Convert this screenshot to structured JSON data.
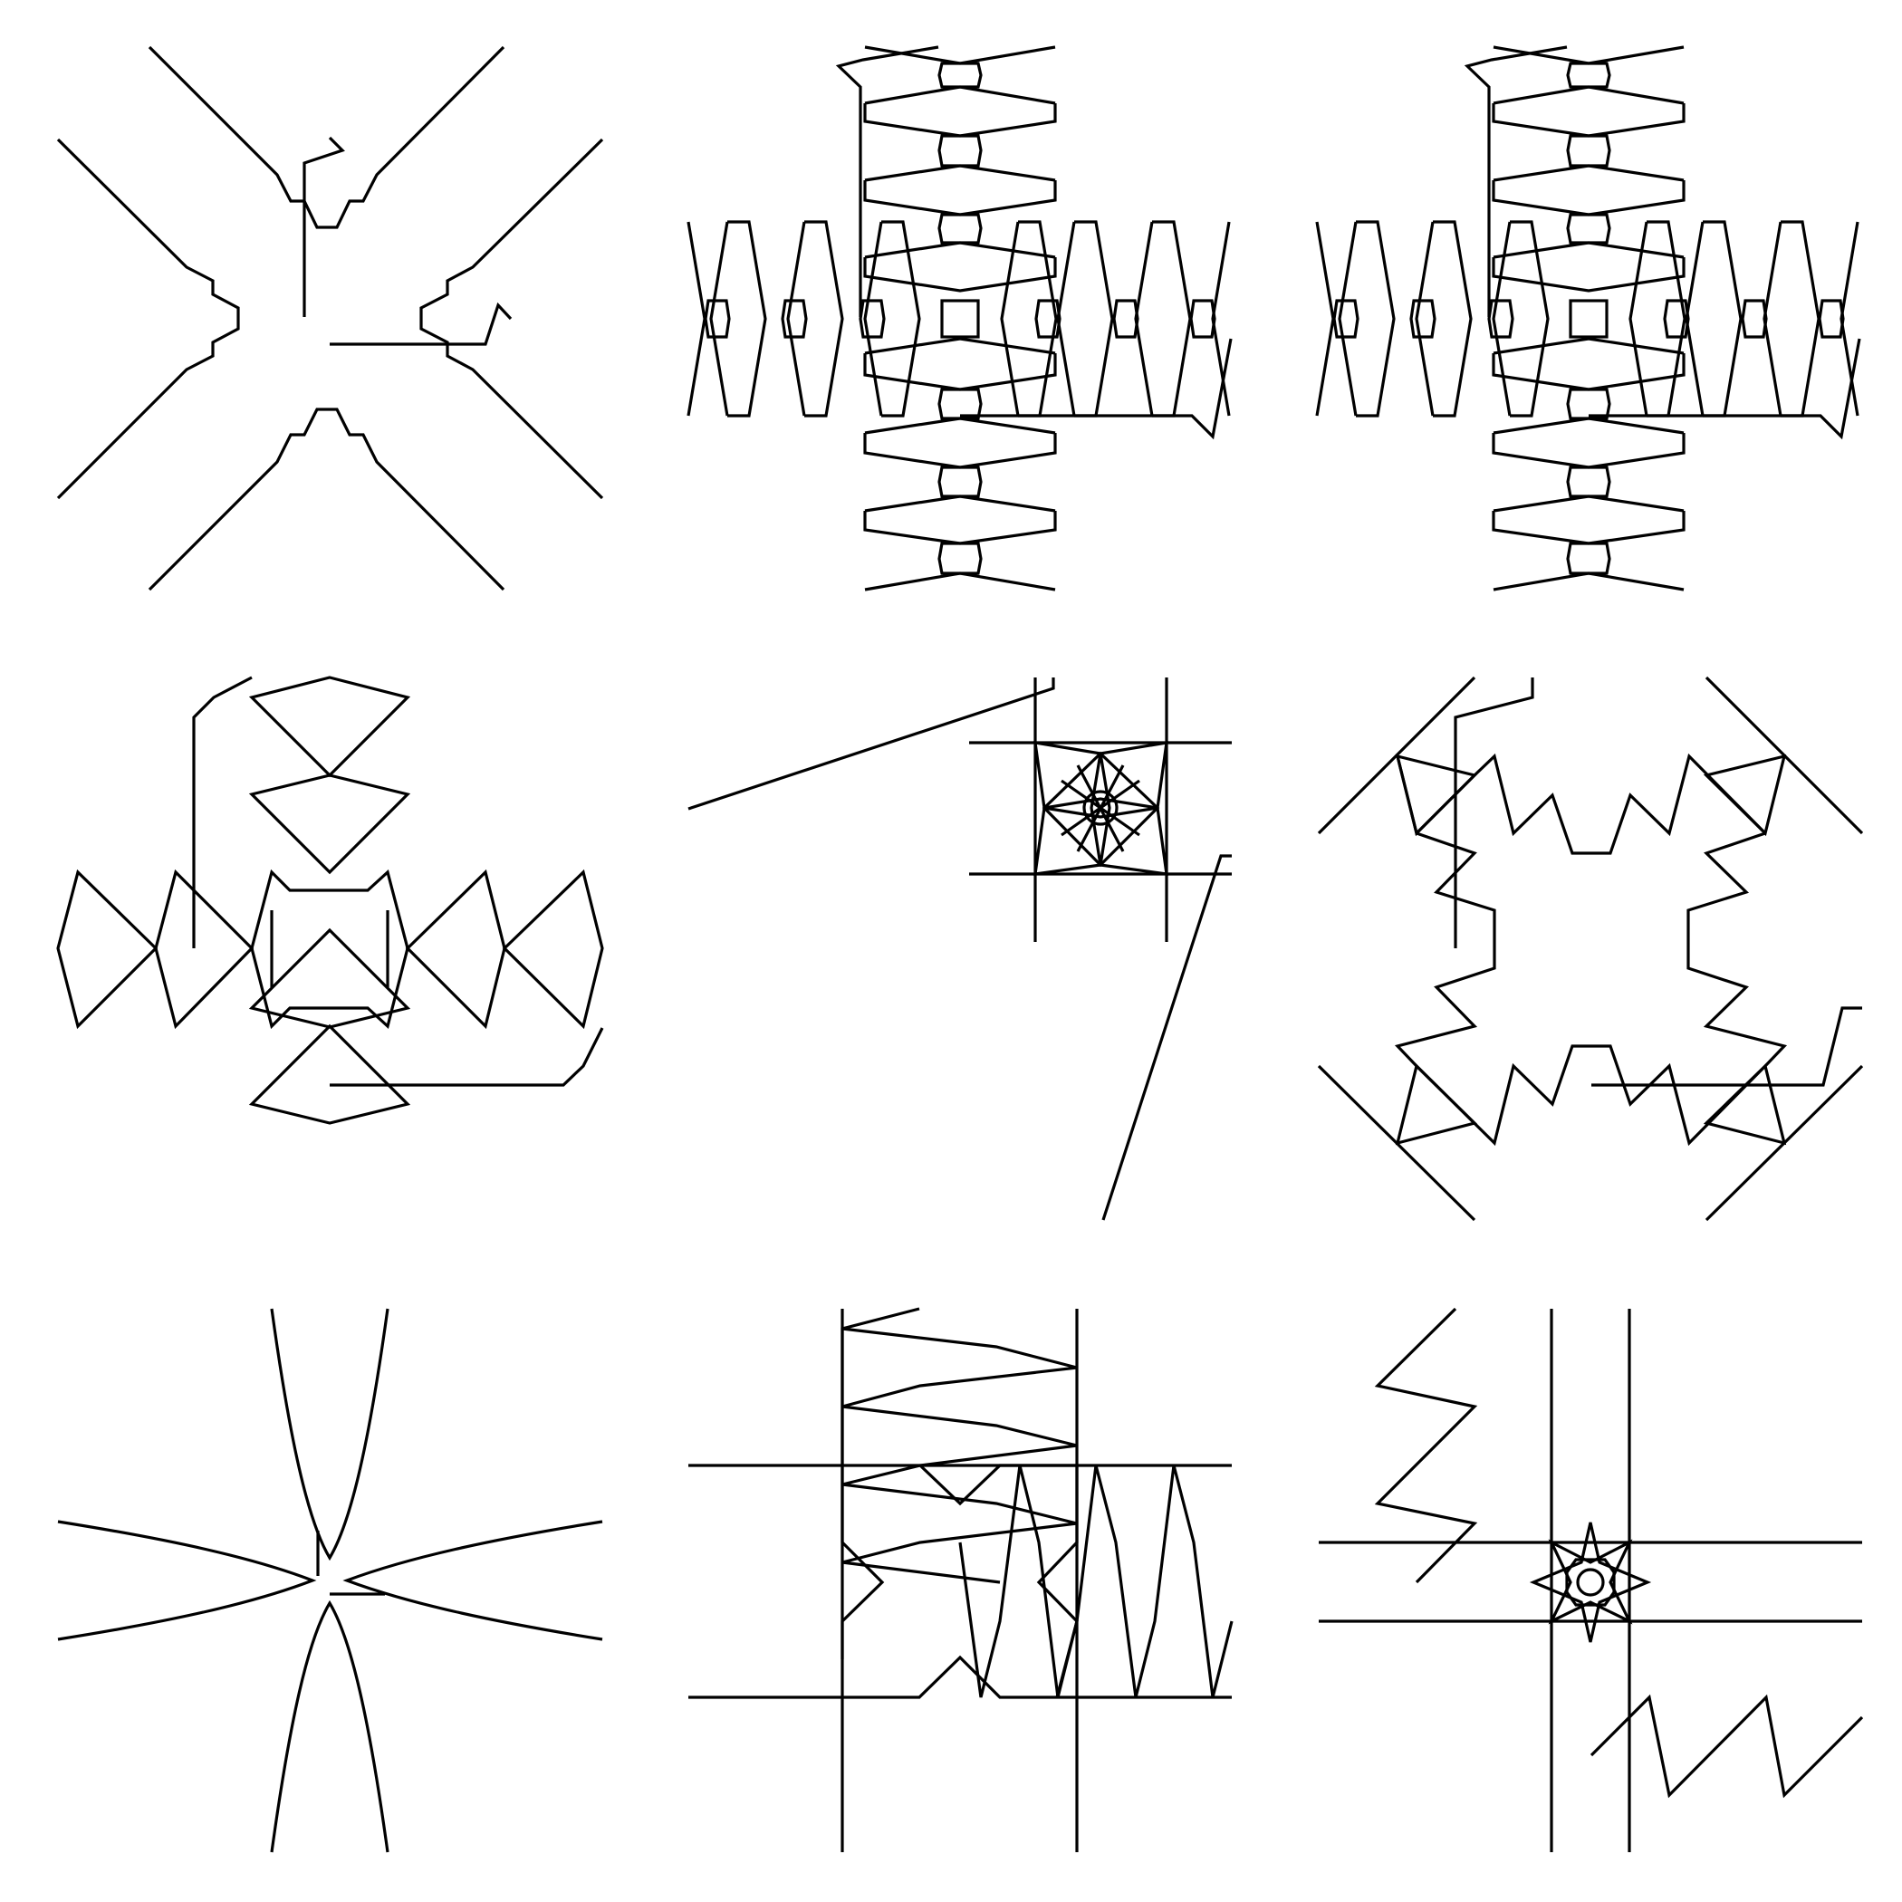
{
  "figure": {
    "stroke_color": "#000000",
    "background": "#ffffff",
    "panels": [
      {
        "name": "panel-diagonal-arms-with-notches"
      },
      {
        "name": "panel-chain-cross-pattern"
      },
      {
        "name": "panel-chain-cross-pattern-duplicate"
      },
      {
        "name": "panel-bowtie-cross-pattern"
      },
      {
        "name": "panel-star-inside-grid-square"
      },
      {
        "name": "panel-zigzag-frame-pattern"
      },
      {
        "name": "panel-curved-petal-cross"
      },
      {
        "name": "panel-grid-with-zigzags"
      },
      {
        "name": "panel-star-octagon-with-zigzags"
      }
    ]
  }
}
